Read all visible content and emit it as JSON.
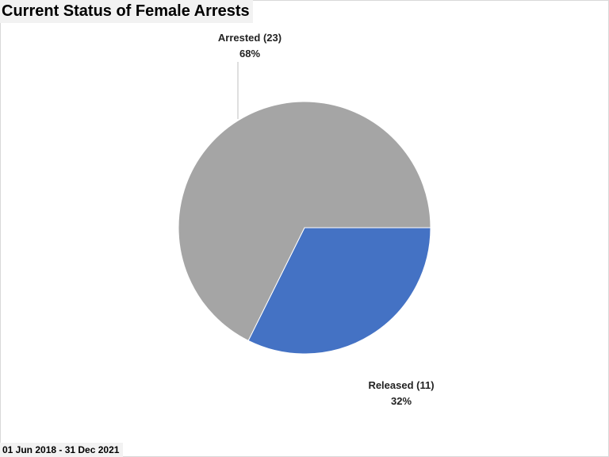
{
  "footer": {
    "date_range": "01 Jun 2018 - 31 Dec 2021"
  },
  "chart_data": {
    "type": "pie",
    "title": "Current Status of Female Arrests",
    "slices": [
      {
        "label": "Released (11)",
        "value": 11,
        "percent": "32%",
        "color": "#4472c4"
      },
      {
        "label": "Arrested (23)",
        "value": 23,
        "percent": "68%",
        "color": "#a5a5a5"
      }
    ],
    "start_angle_deg": 90,
    "direction": "clockwise",
    "slice_border_color": "#ffffff"
  }
}
